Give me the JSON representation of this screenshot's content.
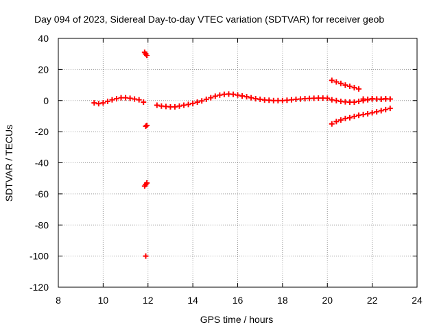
{
  "chart_data": {
    "type": "scatter",
    "title": "Day 094 of 2023, Sidereal Day-to-day VTEC variation (SDTVAR) for receiver geob",
    "xlabel": "GPS time / hours",
    "ylabel": "SDTVAR / TECUs",
    "xlim": [
      8,
      24
    ],
    "ylim": [
      -120,
      40
    ],
    "xticks": [
      8,
      10,
      12,
      14,
      16,
      18,
      20,
      22,
      24
    ],
    "yticks": [
      -120,
      -100,
      -80,
      -60,
      -40,
      -20,
      0,
      20,
      40
    ],
    "grid": true,
    "marker": "+",
    "color": "#ff0000",
    "series": [
      {
        "name": "main-trend",
        "x": [
          9.6,
          9.8,
          10.0,
          10.2,
          10.4,
          10.6,
          10.8,
          11.0,
          11.2,
          11.4,
          11.6,
          11.8
        ],
        "y": [
          -1.5,
          -2.0,
          -1.5,
          -0.5,
          0.5,
          1.2,
          1.8,
          1.8,
          1.5,
          1.0,
          0.5,
          -1.0
        ]
      },
      {
        "name": "after-gap",
        "x": [
          12.4,
          12.6,
          12.8,
          13.0,
          13.2,
          13.4,
          13.6,
          13.8,
          14.0,
          14.2,
          14.4,
          14.6,
          14.8,
          15.0,
          15.2,
          15.4,
          15.6,
          15.8,
          16.0,
          16.2,
          16.4,
          16.6,
          16.8,
          17.0,
          17.2,
          17.4,
          17.6,
          17.8,
          18.0,
          18.2,
          18.4,
          18.6,
          18.8,
          19.0,
          19.2,
          19.4,
          19.6,
          19.8,
          20.0
        ],
        "y": [
          -3.0,
          -3.5,
          -3.8,
          -4.0,
          -4.0,
          -3.5,
          -3.0,
          -2.5,
          -1.8,
          -1.0,
          -0.2,
          0.8,
          1.8,
          2.8,
          3.5,
          4.0,
          4.2,
          4.0,
          3.5,
          3.0,
          2.5,
          1.8,
          1.2,
          0.8,
          0.4,
          0.2,
          0.0,
          0.0,
          0.0,
          0.2,
          0.5,
          0.8,
          1.0,
          1.2,
          1.4,
          1.5,
          1.6,
          1.6,
          1.5
        ]
      },
      {
        "name": "late-upper",
        "x": [
          20.2,
          20.4,
          20.6,
          20.8,
          21.0,
          21.2,
          21.4
        ],
        "y": [
          13.0,
          12.0,
          11.0,
          10.0,
          9.2,
          8.3,
          7.5
        ]
      },
      {
        "name": "late-middle",
        "x": [
          20.2,
          20.4,
          20.6,
          20.8,
          21.0,
          21.2,
          21.4,
          21.6,
          21.8,
          22.0,
          22.2,
          22.4,
          22.6,
          22.8
        ],
        "y": [
          0.5,
          0.0,
          -0.5,
          -0.8,
          -1.0,
          -1.0,
          -0.5,
          0.0,
          0.5,
          1.0,
          1.0,
          1.0,
          1.0,
          1.0
        ]
      },
      {
        "name": "late-lower",
        "x": [
          20.2,
          20.4,
          20.6,
          20.8,
          21.0,
          21.2,
          21.4,
          21.6,
          21.8,
          22.0,
          22.2,
          22.4,
          22.6,
          22.8
        ],
        "y": [
          -15.0,
          -13.5,
          -12.5,
          -11.5,
          -11.0,
          -10.2,
          -9.5,
          -9.0,
          -8.5,
          -7.8,
          -7.2,
          -6.5,
          -5.8,
          -5.0
        ]
      },
      {
        "name": "late-dense-band",
        "x": [
          21.6,
          21.8,
          22.0,
          22.2,
          22.4,
          22.6,
          22.8
        ],
        "y": [
          1.0,
          0.8,
          1.2,
          1.0,
          0.8,
          1.2,
          1.0
        ]
      },
      {
        "name": "jump-at-noon",
        "x": [
          11.85,
          11.9,
          11.95,
          11.9,
          11.95,
          11.85,
          11.9,
          11.95,
          11.9
        ],
        "y": [
          31.0,
          30.0,
          29.0,
          -16.5,
          -16.0,
          -55.0,
          -54.0,
          -53.0,
          -100.0
        ]
      }
    ]
  }
}
